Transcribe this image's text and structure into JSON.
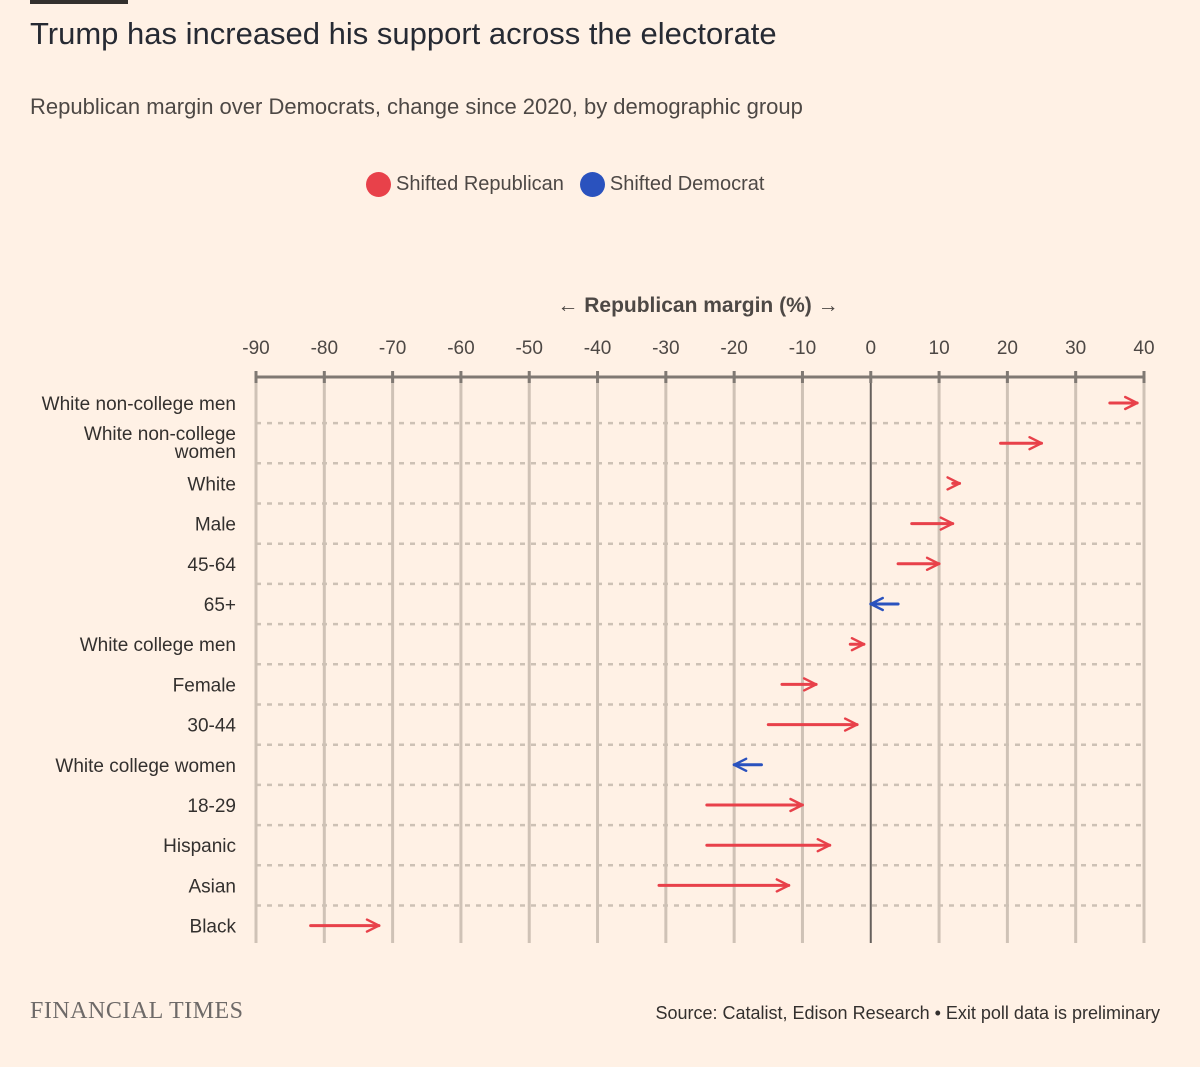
{
  "header": {
    "title": "Trump has increased his support across the electorate",
    "subtitle": "Republican margin over Democrats, change since 2020, by demographic group"
  },
  "legend": {
    "republican_label": "Shifted Republican",
    "democrat_label": "Shifted Democrat",
    "republican_color": "#e8414a",
    "democrat_color": "#2a52be"
  },
  "chart_data": {
    "type": "arrow-range",
    "title": "Trump has increased his support across the electorate",
    "xlabel": "← Republican margin (%) →",
    "xlim": [
      -90,
      40
    ],
    "xticks": [
      "-90",
      "-80",
      "-70",
      "-60",
      "-50",
      "-40",
      "-30",
      "-20",
      "-10",
      "0",
      "10",
      "20",
      "30",
      "40"
    ],
    "series": [
      {
        "group": "White non-college men",
        "from": 35,
        "to": 39,
        "shift": "Republican"
      },
      {
        "group": "White non-college women",
        "from": 19,
        "to": 25,
        "shift": "Republican"
      },
      {
        "group": "White",
        "from": 12,
        "to": 13,
        "shift": "Republican"
      },
      {
        "group": "Male",
        "from": 6,
        "to": 12,
        "shift": "Republican"
      },
      {
        "group": "45-64",
        "from": 4,
        "to": 10,
        "shift": "Republican"
      },
      {
        "group": "65+",
        "from": 4,
        "to": 0,
        "shift": "Democrat"
      },
      {
        "group": "White college men",
        "from": -3,
        "to": -1,
        "shift": "Republican"
      },
      {
        "group": "Female",
        "from": -13,
        "to": -8,
        "shift": "Republican"
      },
      {
        "group": "30-44",
        "from": -15,
        "to": -2,
        "shift": "Republican"
      },
      {
        "group": "White college women",
        "from": -16,
        "to": -20,
        "shift": "Democrat"
      },
      {
        "group": "18-29",
        "from": -24,
        "to": -10,
        "shift": "Republican"
      },
      {
        "group": "Hispanic",
        "from": -24,
        "to": -6,
        "shift": "Republican"
      },
      {
        "group": "Asian",
        "from": -31,
        "to": -12,
        "shift": "Republican"
      },
      {
        "group": "Black",
        "from": -82,
        "to": -72,
        "shift": "Republican"
      }
    ]
  },
  "footer": {
    "brand": "FINANCIAL TIMES",
    "source": "Source: Catalist, Edison Research • Exit poll data is preliminary"
  }
}
